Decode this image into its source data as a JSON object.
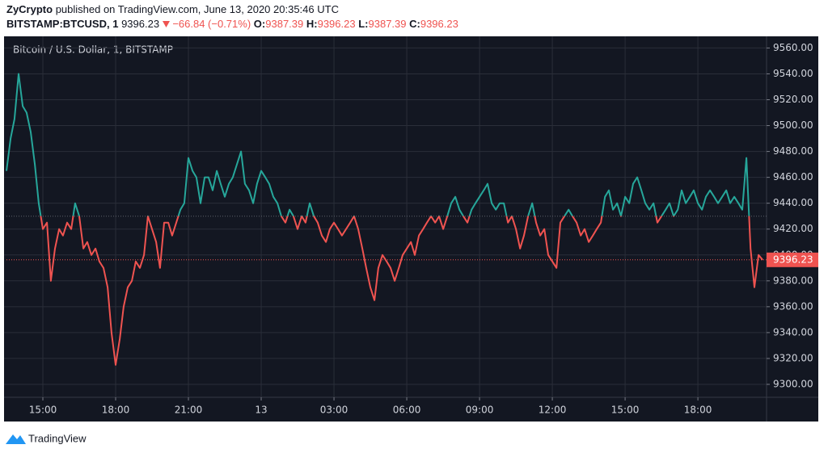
{
  "header": {
    "publisher": "ZyCrypto",
    "published": "published on TradingView.com, June 13, 2020 20:35:46 UTC",
    "symbol": "BITSTAMP:BTCUSD, 1",
    "price": "9396.23",
    "change": "−66.84 (−0.71%)",
    "ohlc": [
      {
        "label": "O:",
        "value": "9387.39"
      },
      {
        "label": "H:",
        "value": "9396.23"
      },
      {
        "label": "L:",
        "value": "9387.39"
      },
      {
        "label": "C:",
        "value": "9396.23"
      }
    ]
  },
  "footer": {
    "brand": "TradingView"
  },
  "chart_data": {
    "type": "line",
    "title": "Bitcoin / U.S. Dollar, 1, BITSTAMP",
    "baseline": 9430,
    "up_color": "#26a69a",
    "down_color": "#ef5350",
    "grid": true,
    "xlim": [
      13.5,
      44.83
    ],
    "ylim": [
      9290,
      9569
    ],
    "xticks": [
      {
        "value": 15,
        "label": "15:00"
      },
      {
        "value": 18,
        "label": "18:00"
      },
      {
        "value": 21,
        "label": "21:00"
      },
      {
        "value": 24,
        "label": "13"
      },
      {
        "value": 27,
        "label": "03:00"
      },
      {
        "value": 30,
        "label": "06:00"
      },
      {
        "value": 33,
        "label": "09:00"
      },
      {
        "value": 36,
        "label": "12:00"
      },
      {
        "value": 39,
        "label": "15:00"
      },
      {
        "value": 42,
        "label": "18:00"
      }
    ],
    "yticks": [
      {
        "value": 9300,
        "label": "9300.00"
      },
      {
        "value": 9320,
        "label": "9320.00"
      },
      {
        "value": 9340,
        "label": "9340.00"
      },
      {
        "value": 9360,
        "label": "9360.00"
      },
      {
        "value": 9380,
        "label": "9380.00"
      },
      {
        "value": 9400,
        "label": "9400.00"
      },
      {
        "value": 9420,
        "label": "9420.00"
      },
      {
        "value": 9440,
        "label": "9440.00"
      },
      {
        "value": 9460,
        "label": "9460.00"
      },
      {
        "value": 9480,
        "label": "9480.00"
      },
      {
        "value": 9500,
        "label": "9500.00"
      },
      {
        "value": 9520,
        "label": "9520.00"
      },
      {
        "value": 9540,
        "label": "9540.00"
      },
      {
        "value": 9560,
        "label": "9560.00"
      }
    ],
    "x": [
      13.5,
      13.67,
      13.83,
      14,
      14.17,
      14.33,
      14.5,
      14.67,
      14.83,
      15,
      15.17,
      15.33,
      15.5,
      15.67,
      15.83,
      16,
      16.17,
      16.33,
      16.5,
      16.67,
      16.83,
      17,
      17.17,
      17.33,
      17.5,
      17.67,
      17.83,
      18,
      18.17,
      18.33,
      18.5,
      18.67,
      18.83,
      19,
      19.17,
      19.33,
      19.5,
      19.67,
      19.83,
      20,
      20.17,
      20.33,
      20.5,
      20.67,
      20.83,
      21,
      21.17,
      21.33,
      21.5,
      21.67,
      21.83,
      22,
      22.17,
      22.33,
      22.5,
      22.67,
      22.83,
      23,
      23.17,
      23.33,
      23.5,
      23.67,
      23.83,
      24,
      24.17,
      24.33,
      24.5,
      24.67,
      24.83,
      25,
      25.17,
      25.33,
      25.5,
      25.67,
      25.83,
      26,
      26.17,
      26.33,
      26.5,
      26.67,
      26.83,
      27,
      27.17,
      27.33,
      27.5,
      27.67,
      27.83,
      28,
      28.17,
      28.33,
      28.5,
      28.67,
      28.83,
      29,
      29.17,
      29.33,
      29.5,
      29.67,
      29.83,
      30,
      30.17,
      30.33,
      30.5,
      30.67,
      30.83,
      31,
      31.17,
      31.33,
      31.5,
      31.67,
      31.83,
      32,
      32.17,
      32.33,
      32.5,
      32.67,
      32.83,
      33,
      33.17,
      33.33,
      33.5,
      33.67,
      33.83,
      34,
      34.17,
      34.33,
      34.5,
      34.67,
      34.83,
      35,
      35.17,
      35.33,
      35.5,
      35.67,
      35.83,
      36,
      36.17,
      36.33,
      36.5,
      36.67,
      36.83,
      37,
      37.17,
      37.33,
      37.5,
      37.67,
      37.83,
      38,
      38.17,
      38.33,
      38.5,
      38.67,
      38.83,
      39,
      39.17,
      39.33,
      39.5,
      39.67,
      39.83,
      40,
      40.17,
      40.33,
      40.5,
      40.67,
      40.83,
      41,
      41.17,
      41.33,
      41.5,
      41.67,
      41.83,
      42,
      42.17,
      42.33,
      42.5,
      42.67,
      42.83,
      43,
      43.17,
      43.33,
      43.5,
      43.67,
      43.83,
      44,
      44.17,
      44.33,
      44.5,
      44.67
    ],
    "series": [
      {
        "name": "BTCUSD",
        "values": [
          9465,
          9490,
          9505,
          9540,
          9515,
          9510,
          9495,
          9470,
          9440,
          9420,
          9425,
          9380,
          9405,
          9420,
          9415,
          9425,
          9420,
          9440,
          9430,
          9405,
          9410,
          9400,
          9405,
          9395,
          9390,
          9375,
          9340,
          9315,
          9335,
          9360,
          9375,
          9380,
          9395,
          9390,
          9400,
          9430,
          9420,
          9410,
          9390,
          9425,
          9425,
          9415,
          9425,
          9435,
          9440,
          9475,
          9465,
          9460,
          9440,
          9460,
          9460,
          9450,
          9465,
          9455,
          9445,
          9455,
          9460,
          9470,
          9480,
          9455,
          9450,
          9440,
          9455,
          9465,
          9460,
          9455,
          9445,
          9440,
          9430,
          9425,
          9435,
          9430,
          9420,
          9430,
          9425,
          9440,
          9430,
          9425,
          9415,
          9410,
          9420,
          9425,
          9420,
          9415,
          9420,
          9425,
          9430,
          9420,
          9405,
          9390,
          9375,
          9365,
          9390,
          9400,
          9395,
          9390,
          9380,
          9390,
          9400,
          9405,
          9410,
          9400,
          9415,
          9420,
          9425,
          9430,
          9425,
          9430,
          9420,
          9430,
          9440,
          9445,
          9435,
          9430,
          9425,
          9435,
          9440,
          9445,
          9450,
          9455,
          9440,
          9435,
          9440,
          9440,
          9425,
          9430,
          9420,
          9405,
          9415,
          9430,
          9440,
          9425,
          9415,
          9420,
          9400,
          9395,
          9390,
          9425,
          9430,
          9435,
          9430,
          9425,
          9415,
          9420,
          9410,
          9415,
          9420,
          9425,
          9445,
          9450,
          9435,
          9440,
          9430,
          9445,
          9440,
          9455,
          9460,
          9450,
          9440,
          9435,
          9440,
          9425,
          9430,
          9435,
          9440,
          9430,
          9435,
          9450,
          9440,
          9445,
          9450,
          9440,
          9435,
          9445,
          9450,
          9445,
          9440,
          9445,
          9450,
          9440,
          9445,
          9440,
          9435,
          9475,
          9405,
          9375,
          9400,
          9396.23
        ]
      }
    ]
  }
}
